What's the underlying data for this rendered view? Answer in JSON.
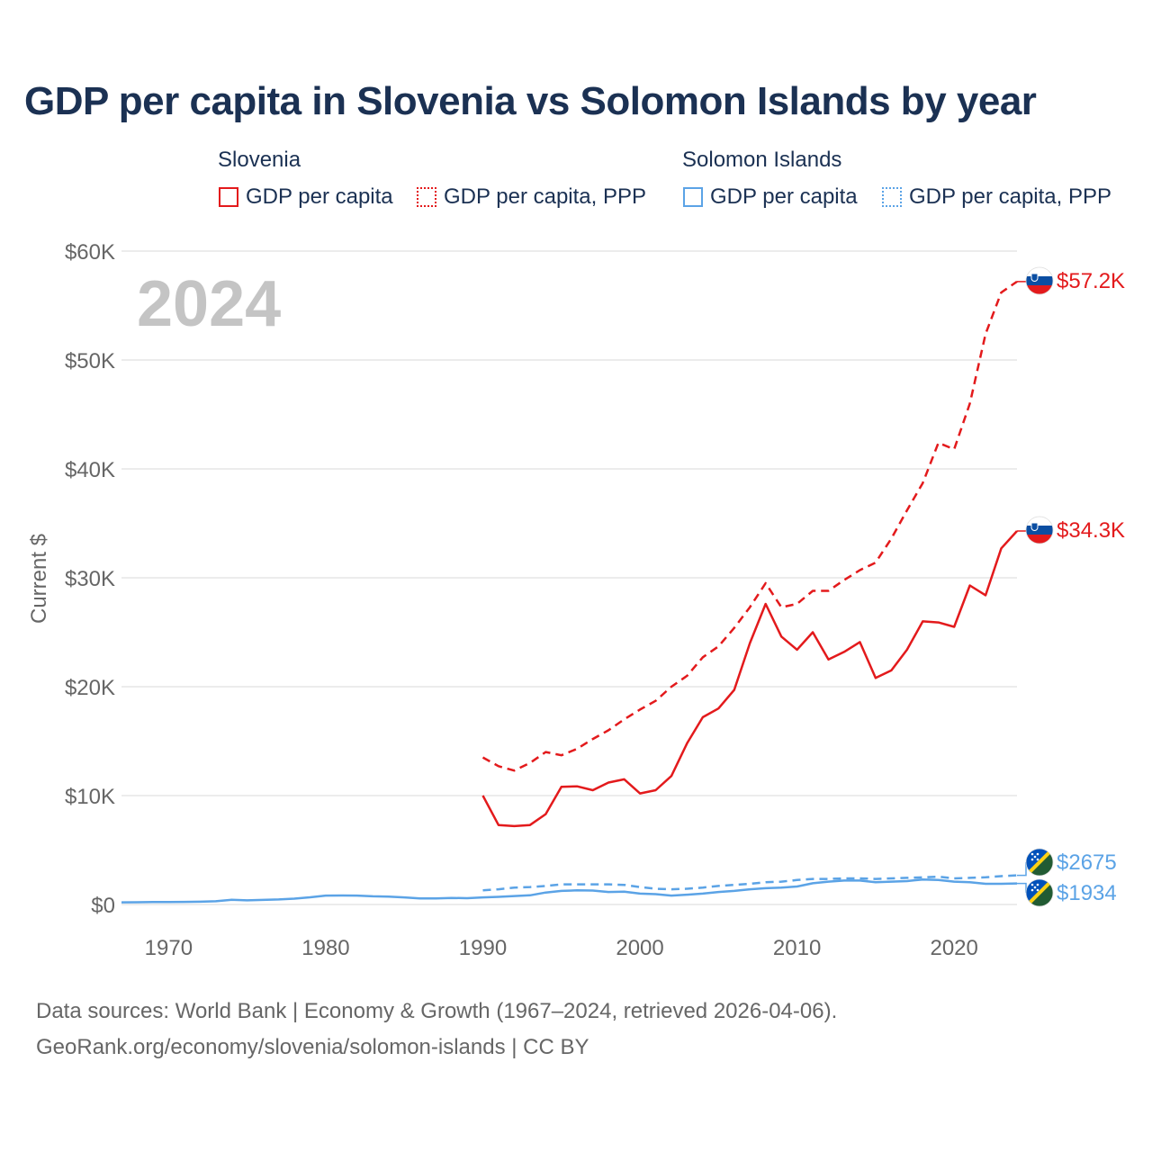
{
  "title": "GDP per capita in Slovenia vs Solomon Islands by year",
  "legend": {
    "groups": [
      {
        "country": "Slovenia",
        "color": "#e31a1c",
        "items": [
          {
            "label": "GDP per capita",
            "style": "solid"
          },
          {
            "label": "GDP per capita, PPP",
            "style": "dotted"
          }
        ]
      },
      {
        "country": "Solomon Islands",
        "color": "#5ba3e6",
        "items": [
          {
            "label": "GDP per capita",
            "style": "solid"
          },
          {
            "label": "GDP per capita, PPP",
            "style": "dotted"
          }
        ]
      }
    ]
  },
  "year_label": "2024",
  "footer": {
    "line1": "Data sources: World Bank | Economy & Growth (1967–2024, retrieved 2026-04-06).",
    "line2": "GeoRank.org/economy/slovenia/solomon-islands | CC BY"
  },
  "chart_data": {
    "type": "line",
    "ylabel": "Current $",
    "xlim": [
      1967,
      2024
    ],
    "ylim": [
      0,
      60000
    ],
    "y_ticks": [
      0,
      10000,
      20000,
      30000,
      40000,
      50000,
      60000
    ],
    "y_tick_labels": [
      "$0",
      "$10K",
      "$20K",
      "$30K",
      "$40K",
      "$50K",
      "$60K"
    ],
    "x_ticks": [
      1970,
      1980,
      1990,
      2000,
      2010,
      2020
    ],
    "x_tick_labels": [
      "1970",
      "1980",
      "1990",
      "2000",
      "2010",
      "2020"
    ],
    "series": [
      {
        "name": "Slovenia GDP per capita",
        "country": "Slovenia",
        "color": "#e31a1c",
        "dash": "solid",
        "end_label": "$34.3K",
        "flag": "slovenia",
        "x": [
          1990,
          1991,
          1992,
          1993,
          1994,
          1995,
          1996,
          1997,
          1998,
          1999,
          2000,
          2001,
          2002,
          2003,
          2004,
          2005,
          2006,
          2007,
          2008,
          2009,
          2010,
          2011,
          2012,
          2013,
          2014,
          2015,
          2016,
          2017,
          2018,
          2019,
          2020,
          2021,
          2022,
          2023,
          2024
        ],
        "values": [
          10000,
          7300,
          7200,
          7300,
          8300,
          10800,
          10850,
          10500,
          11200,
          11500,
          10200,
          10500,
          11800,
          14800,
          17200,
          18000,
          19700,
          24000,
          27600,
          24600,
          23400,
          25000,
          22500,
          23200,
          24100,
          20800,
          21500,
          23400,
          26000,
          25900,
          25500,
          29300,
          28400,
          32700,
          34300
        ]
      },
      {
        "name": "Slovenia GDP per capita, PPP",
        "country": "Slovenia",
        "color": "#e31a1c",
        "dash": "dashed",
        "end_label": "$57.2K",
        "flag": "slovenia",
        "x": [
          1990,
          1991,
          1992,
          1993,
          1994,
          1995,
          1996,
          1997,
          1998,
          1999,
          2000,
          2001,
          2002,
          2003,
          2004,
          2005,
          2006,
          2007,
          2008,
          2009,
          2010,
          2011,
          2012,
          2013,
          2014,
          2015,
          2016,
          2017,
          2018,
          2019,
          2020,
          2021,
          2022,
          2023,
          2024
        ],
        "values": [
          13500,
          12700,
          12300,
          13000,
          14000,
          13700,
          14300,
          15200,
          16000,
          17000,
          17900,
          18700,
          20000,
          21000,
          22700,
          23700,
          25400,
          27300,
          29500,
          27300,
          27600,
          28800,
          28800,
          29800,
          30700,
          31400,
          33600,
          36200,
          38700,
          42400,
          41800,
          46000,
          52400,
          56200,
          57200
        ]
      },
      {
        "name": "Solomon Islands GDP per capita",
        "country": "Solomon Islands",
        "color": "#5ba3e6",
        "dash": "solid",
        "end_label": "$1934",
        "flag": "solomon",
        "x": [
          1967,
          1968,
          1969,
          1970,
          1971,
          1972,
          1973,
          1974,
          1975,
          1976,
          1977,
          1978,
          1979,
          1980,
          1981,
          1982,
          1983,
          1984,
          1985,
          1986,
          1987,
          1988,
          1989,
          1990,
          1991,
          1992,
          1993,
          1994,
          1995,
          1996,
          1997,
          1998,
          1999,
          2000,
          2001,
          2002,
          2003,
          2004,
          2005,
          2006,
          2007,
          2008,
          2009,
          2010,
          2011,
          2012,
          2013,
          2014,
          2015,
          2016,
          2017,
          2018,
          2019,
          2020,
          2021,
          2022,
          2023,
          2024
        ],
        "values": [
          200,
          210,
          220,
          230,
          240,
          260,
          300,
          430,
          380,
          420,
          460,
          540,
          660,
          820,
          830,
          820,
          750,
          720,
          650,
          560,
          560,
          600,
          580,
          650,
          700,
          780,
          840,
          1100,
          1250,
          1300,
          1280,
          1150,
          1180,
          1000,
          950,
          820,
          900,
          1000,
          1150,
          1250,
          1400,
          1500,
          1550,
          1650,
          1950,
          2100,
          2200,
          2200,
          2050,
          2100,
          2150,
          2300,
          2250,
          2100,
          2050,
          1900,
          1900,
          1934
        ]
      },
      {
        "name": "Solomon Islands GDP per capita, PPP",
        "country": "Solomon Islands",
        "color": "#5ba3e6",
        "dash": "dashed",
        "end_label": "$2675",
        "flag": "solomon",
        "x": [
          1990,
          1991,
          1992,
          1993,
          1994,
          1995,
          1996,
          1997,
          1998,
          1999,
          2000,
          2001,
          2002,
          2003,
          2004,
          2005,
          2006,
          2007,
          2008,
          2009,
          2010,
          2011,
          2012,
          2013,
          2014,
          2015,
          2016,
          2017,
          2018,
          2019,
          2020,
          2021,
          2022,
          2023,
          2024
        ],
        "values": [
          1300,
          1400,
          1550,
          1600,
          1700,
          1850,
          1850,
          1850,
          1850,
          1800,
          1600,
          1450,
          1400,
          1450,
          1550,
          1700,
          1800,
          1900,
          2050,
          2100,
          2250,
          2350,
          2350,
          2400,
          2400,
          2350,
          2400,
          2450,
          2500,
          2550,
          2400,
          2450,
          2500,
          2600,
          2675
        ]
      }
    ]
  }
}
